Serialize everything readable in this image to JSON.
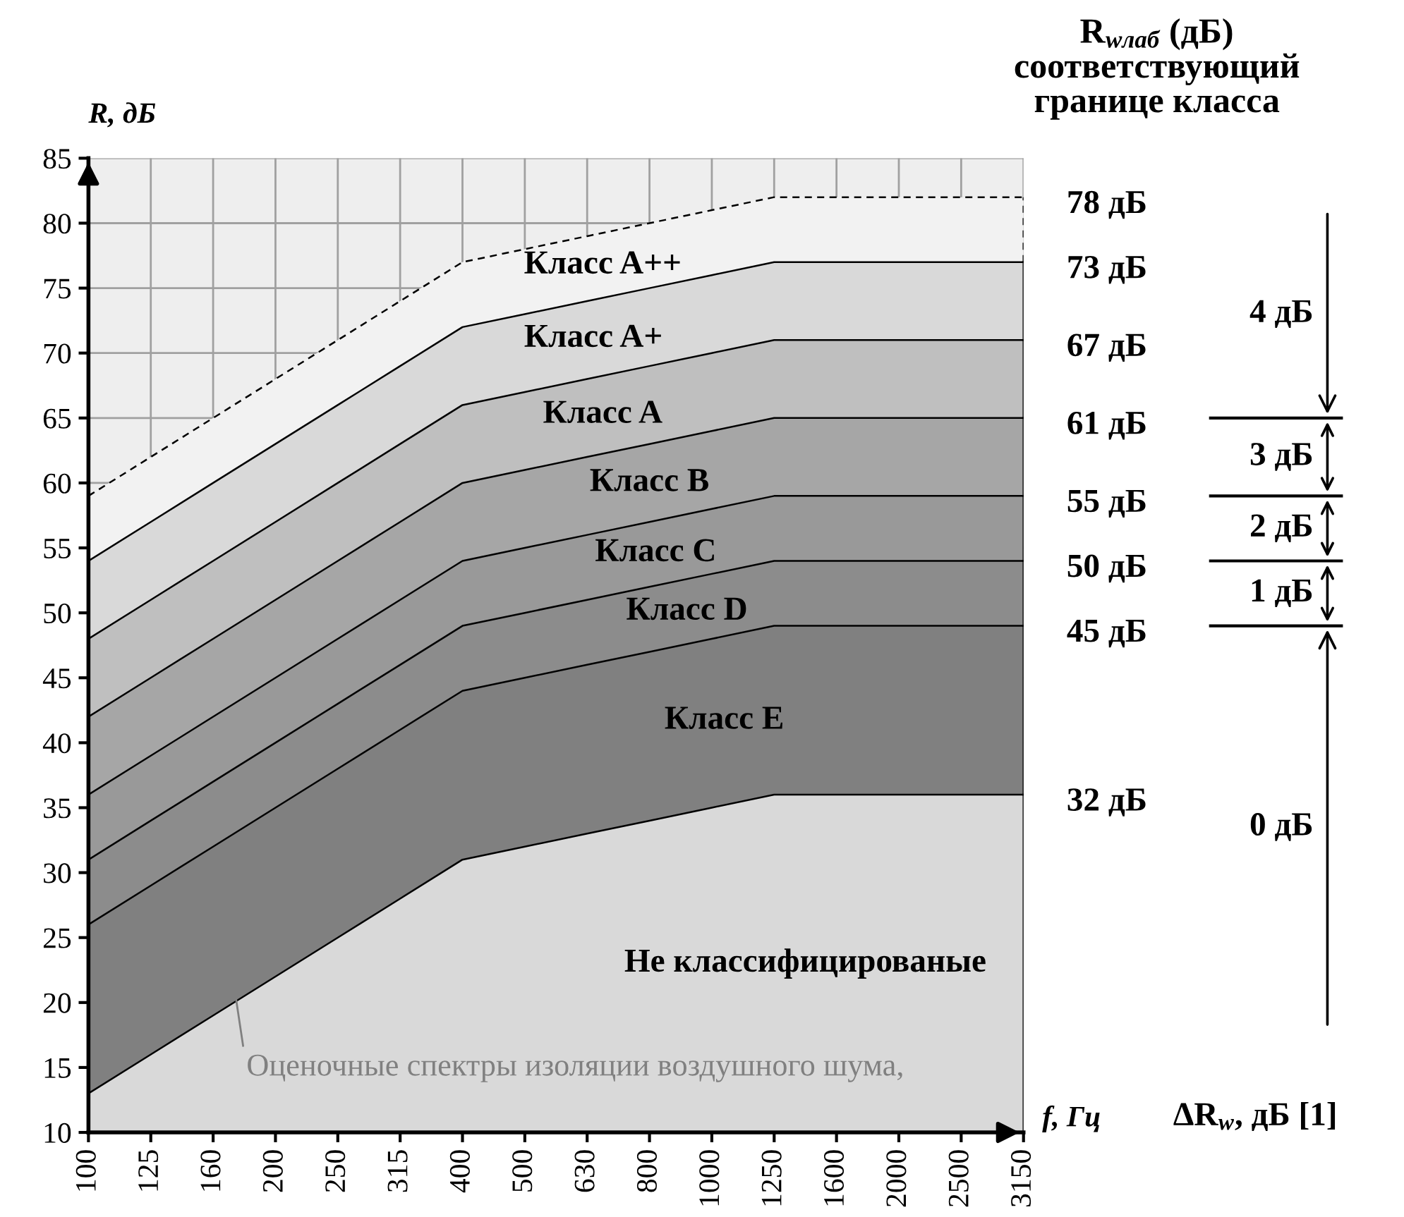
{
  "chart_data": {
    "type": "area",
    "title": "R$_{wлаб}$ (дБ)\nсоответствующий\nгранице класса",
    "ylabel": "R, дБ",
    "xlabel": "f, Гц",
    "categories": [
      "100",
      "125",
      "160",
      "200",
      "250",
      "315",
      "400",
      "500",
      "630",
      "800",
      "1000",
      "1250",
      "1600",
      "2000",
      "2500",
      "3150"
    ],
    "series": [
      {
        "name": "Не классифицированые",
        "color": "#d9d9d9",
        "values": [
          13,
          16,
          19,
          22,
          25,
          28,
          31,
          32,
          33,
          34,
          35,
          36,
          36,
          36,
          36,
          36
        ]
      },
      {
        "name": "Класс E",
        "color": "#808080",
        "values": [
          26,
          29,
          32,
          35,
          38,
          41,
          44,
          45,
          46,
          47,
          48,
          49,
          49,
          49,
          49,
          49
        ]
      },
      {
        "name": "Класс D",
        "color": "#8c8c8c",
        "values": [
          31,
          34,
          37,
          40,
          43,
          46,
          49,
          50,
          51,
          52,
          53,
          54,
          54,
          54,
          54,
          54
        ]
      },
      {
        "name": "Класс C",
        "color": "#999999",
        "values": [
          36,
          39,
          42,
          45,
          48,
          51,
          54,
          55,
          56,
          57,
          58,
          59,
          59,
          59,
          59,
          59
        ]
      },
      {
        "name": "Класс B",
        "color": "#a6a6a6",
        "values": [
          42,
          45,
          48,
          51,
          54,
          57,
          60,
          61,
          62,
          63,
          64,
          65,
          65,
          65,
          65,
          65
        ]
      },
      {
        "name": "Класс A",
        "color": "#bfbfbf",
        "values": [
          48,
          51,
          54,
          57,
          60,
          63,
          66,
          67,
          68,
          69,
          70,
          71,
          71,
          71,
          71,
          71
        ]
      },
      {
        "name": "Класс A+",
        "color": "#d9d9d9",
        "values": [
          54,
          57,
          60,
          63,
          66,
          69,
          72,
          73,
          74,
          75,
          76,
          77,
          77,
          77,
          77,
          77
        ]
      },
      {
        "name": "Класс A++",
        "color": "#f2f2f2",
        "line_style": "dashed",
        "values": [
          59,
          62,
          65,
          68,
          71,
          74,
          77,
          78,
          79,
          80,
          81,
          82,
          82,
          82,
          82,
          82
        ]
      }
    ],
    "ylim": [
      10,
      85
    ],
    "yticks": [
      10,
      15,
      20,
      25,
      30,
      35,
      40,
      45,
      50,
      55,
      60,
      65,
      70,
      75,
      80,
      85
    ],
    "grid": true,
    "legend": false,
    "annotations": [
      {
        "text": "78 дБ",
        "x": "3150",
        "y": 82
      },
      {
        "text": "73 дБ",
        "x": "3150",
        "y": 77
      },
      {
        "text": "67 дБ",
        "x": "3150",
        "y": 71
      },
      {
        "text": "61 дБ",
        "x": "3150",
        "y": 65
      },
      {
        "text": "55 дБ",
        "x": "3150",
        "y": 59
      },
      {
        "text": "50 дБ",
        "x": "3150",
        "y": 54
      },
      {
        "text": "45 дБ",
        "x": "3150",
        "y": 49
      },
      {
        "text": "32 дБ",
        "x": "3150",
        "y": 36
      },
      "4 дБ",
      "3 дБ",
      "2 дБ",
      "1 дБ",
      "0 дБ",
      {
        "text": "Оценочные спектры изоляции воздушного шума,",
        "x": "160",
        "y": 32
      },
      "ΔR$_{w}$, дБ [1]"
    ]
  }
}
